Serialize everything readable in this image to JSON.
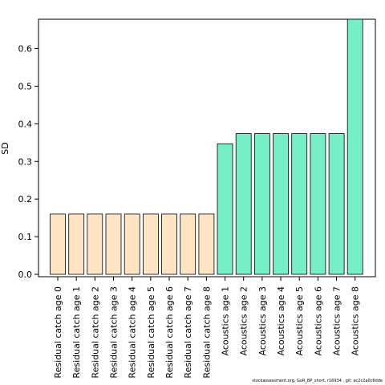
{
  "chart_data": {
    "type": "bar",
    "title": "",
    "xlabel": "",
    "ylabel": "SD",
    "ylim": [
      0,
      0.68
    ],
    "yticks": [
      "0.0",
      "0.1",
      "0.2",
      "0.3",
      "0.4",
      "0.5",
      "0.6"
    ],
    "grid": false,
    "categories": [
      "Residual catch age 0",
      "Residual catch age 1",
      "Residual catch age 2",
      "Residual catch age 3",
      "Residual catch age 4",
      "Residual catch age 5",
      "Residual catch age 6",
      "Residual catch age 7",
      "Residual catch age 8",
      "Acoustics age 1",
      "Acoustics age 2",
      "Acoustics age 3",
      "Acoustics age 4",
      "Acoustics age 5",
      "Acoustics age 6",
      "Acoustics age 7",
      "Acoustics age 8"
    ],
    "values": [
      0.16,
      0.16,
      0.16,
      0.16,
      0.16,
      0.16,
      0.16,
      0.16,
      0.16,
      0.347,
      0.374,
      0.374,
      0.374,
      0.374,
      0.374,
      0.374,
      0.68
    ],
    "groups": [
      "catch",
      "catch",
      "catch",
      "catch",
      "catch",
      "catch",
      "catch",
      "catch",
      "catch",
      "acoustic",
      "acoustic",
      "acoustic",
      "acoustic",
      "acoustic",
      "acoustic",
      "acoustic",
      "acoustic"
    ],
    "colors": {
      "catch": "#ffe4c4",
      "acoustic": "#76eec6",
      "outline": "#000000"
    }
  },
  "footer": "stockassessment.org, GoR_BP_short, r16934 , git: ec2c2a0c6dde"
}
